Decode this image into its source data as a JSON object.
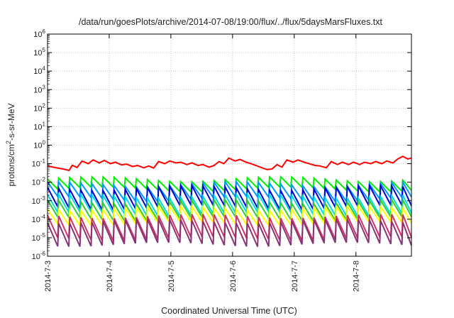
{
  "chart_data": {
    "type": "line",
    "title": "/data/run/goesPlots/archive/2014-07-08/19:00/flux/../flux/5daysMarsFluxes.txt",
    "xlabel": "Coordinated Universal Time (UTC)",
    "ylabel_parts": [
      "protons/cm",
      "2",
      "-s-sr-MeV"
    ],
    "yscale": "log",
    "ylim_exp": [
      -6,
      6
    ],
    "ytick_exponents": [
      -6,
      -5,
      -4,
      -3,
      -2,
      -1,
      0,
      1,
      2,
      3,
      4,
      5,
      6
    ],
    "ytick_base": "10",
    "xlim_days": [
      0,
      5.9
    ],
    "xticks": [
      {
        "day": 0,
        "label": "2014-7-3"
      },
      {
        "day": 1,
        "label": "2014-7-4"
      },
      {
        "day": 2,
        "label": "2014-7-5"
      },
      {
        "day": 3,
        "label": "2014-7-6"
      },
      {
        "day": 4,
        "label": "2014-7-7"
      },
      {
        "day": 5,
        "label": "2014-7-8"
      }
    ],
    "grid": true,
    "series": [
      {
        "color": "#ff0000",
        "points": [
          [
            0.0,
            0.075
          ],
          [
            0.12,
            0.062
          ],
          [
            0.25,
            0.052
          ],
          [
            0.35,
            0.043
          ],
          [
            0.4,
            0.082
          ],
          [
            0.48,
            0.062
          ],
          [
            0.56,
            0.14
          ],
          [
            0.66,
            0.1
          ],
          [
            0.74,
            0.16
          ],
          [
            0.84,
            0.11
          ],
          [
            0.92,
            0.15
          ],
          [
            1.02,
            0.1
          ],
          [
            1.1,
            0.12
          ],
          [
            1.2,
            0.085
          ],
          [
            1.28,
            0.095
          ],
          [
            1.38,
            0.07
          ],
          [
            1.46,
            0.08
          ],
          [
            1.56,
            0.06
          ],
          [
            1.64,
            0.075
          ],
          [
            1.72,
            0.058
          ],
          [
            1.8,
            0.13
          ],
          [
            1.9,
            0.1
          ],
          [
            1.98,
            0.14
          ],
          [
            2.08,
            0.11
          ],
          [
            2.16,
            0.12
          ],
          [
            2.26,
            0.09
          ],
          [
            2.34,
            0.11
          ],
          [
            2.44,
            0.08
          ],
          [
            2.52,
            0.09
          ],
          [
            2.62,
            0.065
          ],
          [
            2.7,
            0.08
          ],
          [
            2.78,
            0.13
          ],
          [
            2.86,
            0.1
          ],
          [
            2.94,
            0.2
          ],
          [
            3.04,
            0.14
          ],
          [
            3.12,
            0.17
          ],
          [
            3.22,
            0.12
          ],
          [
            3.3,
            0.1
          ],
          [
            3.4,
            0.075
          ],
          [
            3.48,
            0.06
          ],
          [
            3.56,
            0.048
          ],
          [
            3.64,
            0.052
          ],
          [
            3.72,
            0.088
          ],
          [
            3.8,
            0.065
          ],
          [
            3.88,
            0.16
          ],
          [
            3.98,
            0.12
          ],
          [
            4.06,
            0.16
          ],
          [
            4.16,
            0.12
          ],
          [
            4.24,
            0.1
          ],
          [
            4.34,
            0.08
          ],
          [
            4.42,
            0.075
          ],
          [
            4.52,
            0.06
          ],
          [
            4.6,
            0.13
          ],
          [
            4.7,
            0.09
          ],
          [
            4.78,
            0.12
          ],
          [
            4.88,
            0.09
          ],
          [
            4.96,
            0.12
          ],
          [
            5.06,
            0.09
          ],
          [
            5.14,
            0.12
          ],
          [
            5.24,
            0.1
          ],
          [
            5.32,
            0.13
          ],
          [
            5.42,
            0.1
          ],
          [
            5.5,
            0.14
          ],
          [
            5.6,
            0.11
          ],
          [
            5.68,
            0.18
          ],
          [
            5.76,
            0.25
          ],
          [
            5.84,
            0.18
          ],
          [
            5.9,
            0.2
          ]
        ]
      },
      {
        "color": "#00ee00",
        "period": 0.18,
        "start": 0.015,
        "ratio": 0.28,
        "sin_amp": 0.3,
        "phase": 0.0
      },
      {
        "color": "#0099ff",
        "period": 0.18,
        "start": 0.008,
        "ratio": 0.16,
        "sin_amp": 0.3,
        "phase": 0.25
      },
      {
        "color": "#0000cc",
        "period": 0.18,
        "start": 0.005,
        "ratio": 0.09,
        "sin_amp": 0.3,
        "phase": 0.5
      },
      {
        "color": "#00dddd",
        "period": 0.18,
        "start": 0.0018,
        "ratio": 0.11,
        "sin_amp": 0.25,
        "phase": 0.15
      },
      {
        "color": "#33cc33",
        "period": 0.18,
        "start": 0.0009,
        "ratio": 0.12,
        "sin_amp": 0.25,
        "phase": 0.35
      },
      {
        "color": "#ffff00",
        "period": 0.18,
        "start": 0.0004,
        "ratio": 0.15,
        "sin_amp": 0.25,
        "phase": 0.6
      },
      {
        "color": "#cc3366",
        "period": 0.18,
        "start": 0.00015,
        "ratio": 0.06,
        "sin_amp": 0.25,
        "phase": 0.45
      },
      {
        "color": "#883377",
        "period": 0.18,
        "start": 8e-05,
        "ratio": 0.055,
        "sin_amp": 0.25,
        "phase": 0.7
      }
    ]
  }
}
